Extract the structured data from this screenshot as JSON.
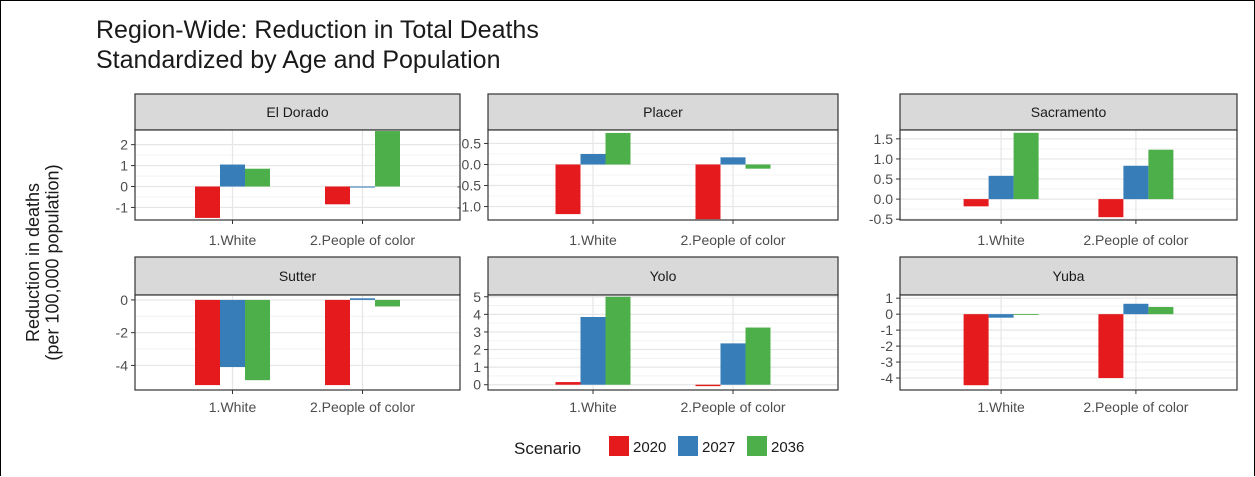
{
  "title_line1": "Region-Wide: Reduction in Total Deaths",
  "title_line2": "Standardized by Age and Population",
  "ylabel_line1": "Reduction in deaths",
  "ylabel_line2": "(per 100,000 population)",
  "legend": {
    "title": "Scenario",
    "items": [
      {
        "label": "2020",
        "color": "#e41a1c"
      },
      {
        "label": "2027",
        "color": "#377eb8"
      },
      {
        "label": "2036",
        "color": "#4daf4a"
      }
    ]
  },
  "chart_data": {
    "type": "bar",
    "categories": [
      "1.White",
      "2.People of color"
    ],
    "series_names": [
      "2020",
      "2027",
      "2036"
    ],
    "panels": [
      {
        "name": "El Dorado",
        "yticks": [
          "2",
          "1",
          "0",
          "-1"
        ],
        "yticks_values": [
          2,
          1,
          0,
          -1
        ],
        "ylim": [
          -1.6,
          2.7
        ],
        "values": {
          "2020": [
            -1.5,
            -0.85
          ],
          "2027": [
            1.05,
            -0.05
          ],
          "2036": [
            0.85,
            2.65
          ]
        }
      },
      {
        "name": "Placer",
        "yticks": [
          "0.5",
          "0.0",
          "-0.5",
          "-1.0"
        ],
        "yticks_values": [
          0.5,
          0.0,
          -0.5,
          -1.0
        ],
        "ylim": [
          -1.32,
          0.82
        ],
        "values": {
          "2020": [
            -1.18,
            -1.3
          ],
          "2027": [
            0.25,
            0.17
          ],
          "2036": [
            0.75,
            -0.1
          ]
        }
      },
      {
        "name": "Sacramento",
        "yticks": [
          "1.5",
          "1.0",
          "0.5",
          "0.0",
          "-0.5"
        ],
        "yticks_values": [
          1.5,
          1.0,
          0.5,
          0.0,
          -0.5
        ],
        "ylim": [
          -0.52,
          1.72
        ],
        "values": {
          "2020": [
            -0.18,
            -0.45
          ],
          "2027": [
            0.58,
            0.83
          ],
          "2036": [
            1.65,
            1.23
          ]
        }
      },
      {
        "name": "Sutter",
        "yticks": [
          "0",
          "-2",
          "-4"
        ],
        "yticks_values": [
          0,
          -2,
          -4
        ],
        "ylim": [
          -5.5,
          0.3
        ],
        "values": {
          "2020": [
            -5.2,
            -5.2
          ],
          "2027": [
            -4.1,
            0.1
          ],
          "2036": [
            -4.9,
            -0.4
          ]
        }
      },
      {
        "name": "Yolo",
        "yticks": [
          "5",
          "4",
          "3",
          "2",
          "1",
          "0"
        ],
        "yticks_values": [
          5,
          4,
          3,
          2,
          1,
          0
        ],
        "ylim": [
          -0.3,
          5.1
        ],
        "values": {
          "2020": [
            0.15,
            -0.08
          ],
          "2027": [
            3.85,
            2.35
          ],
          "2036": [
            5.0,
            3.25
          ]
        }
      },
      {
        "name": "Yuba",
        "yticks": [
          "1",
          "0",
          "-1",
          "-2",
          "-3",
          "-4"
        ],
        "yticks_values": [
          1,
          0,
          -1,
          -2,
          -3,
          -4
        ],
        "ylim": [
          -4.75,
          1.2
        ],
        "values": {
          "2020": [
            -4.45,
            -4.0
          ],
          "2027": [
            -0.22,
            0.65
          ],
          "2036": [
            0.0,
            0.45
          ]
        }
      }
    ]
  }
}
